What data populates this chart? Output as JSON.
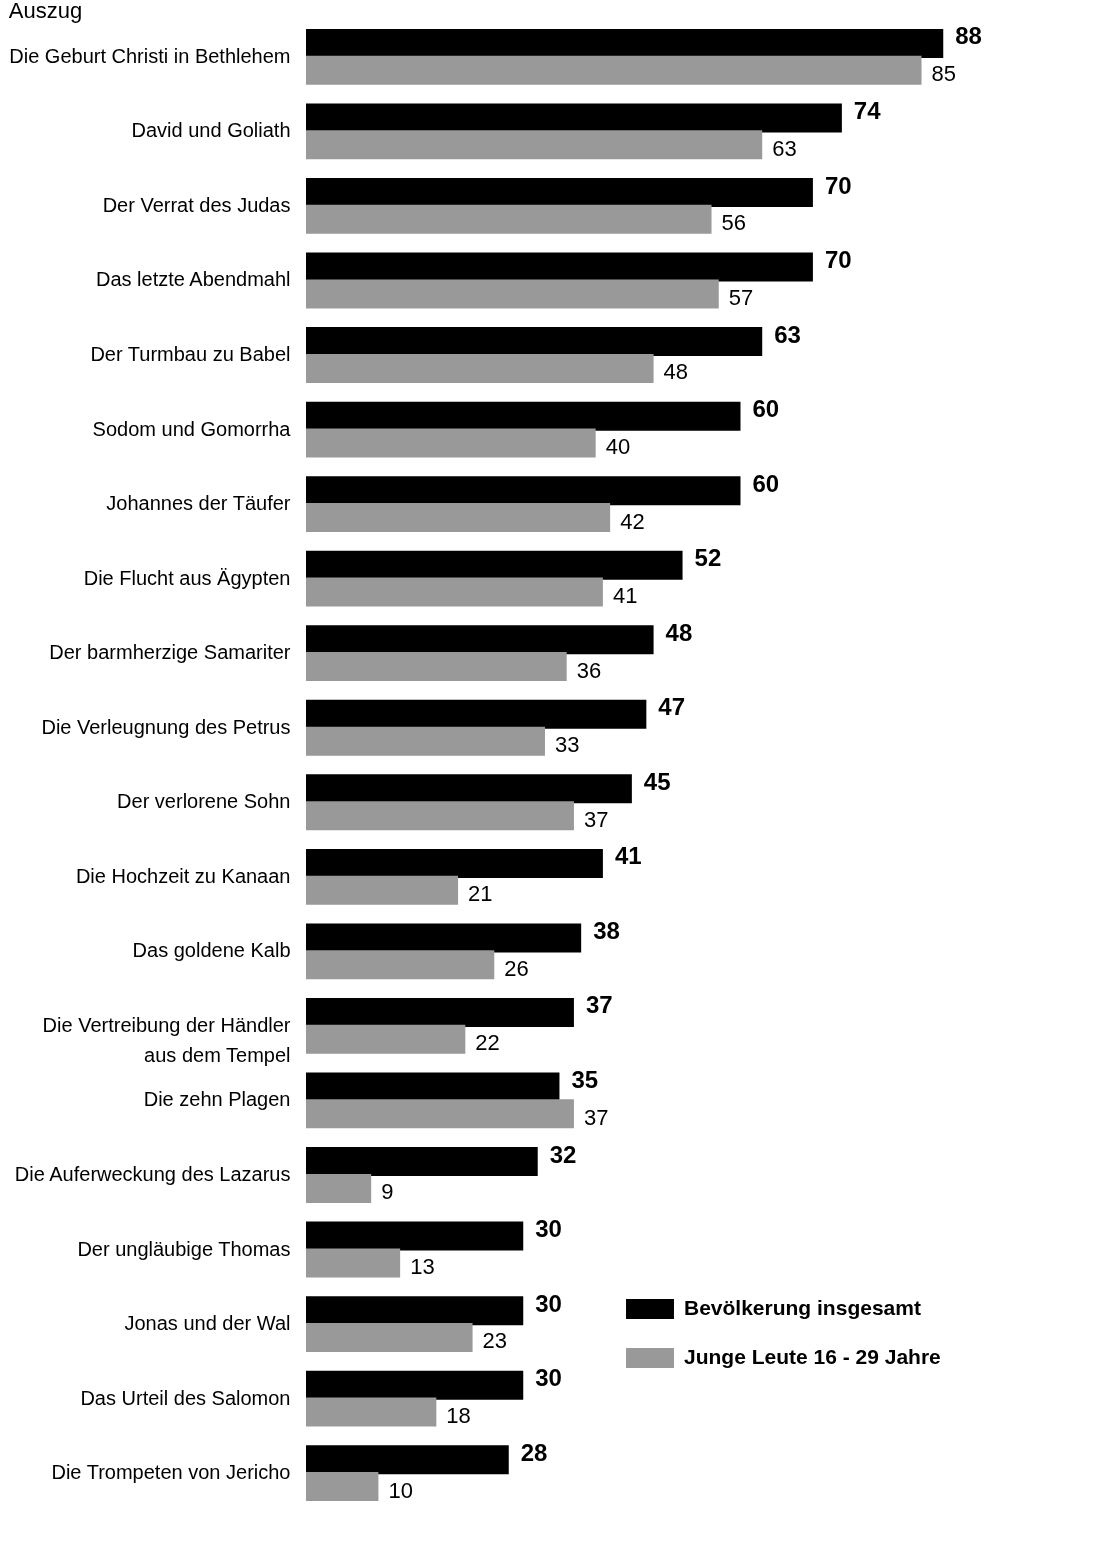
{
  "chart_data": {
    "type": "bar",
    "orientation": "horizontal",
    "title": "Auszug",
    "categories": [
      "Die Geburt Christi in Bethlehem",
      "David und Goliath",
      "Der Verrat des Judas",
      "Das letzte Abendmahl",
      "Der Turmbau zu Babel",
      "Sodom und Gomorrha",
      "Johannes der Täufer",
      "Die Flucht aus Ägypten",
      "Der barmherzige Samariter",
      "Die Verleugnung des Petrus",
      "Der verlorene Sohn",
      "Die Hochzeit zu Kanaan",
      "Das goldene Kalb",
      "Die Vertreibung der Händler\naus dem Tempel",
      "Die zehn Plagen",
      "Die Auferweckung des Lazarus",
      "Der ungläubige Thomas",
      "Jonas und der Wal",
      "Das Urteil des Salomon",
      "Die Trompeten von Jericho"
    ],
    "series": [
      {
        "name": "Bevölkerung insgesamt",
        "color": "#000000",
        "values": [
          88,
          74,
          70,
          70,
          63,
          60,
          60,
          52,
          48,
          47,
          45,
          41,
          38,
          37,
          35,
          32,
          30,
          30,
          30,
          28
        ]
      },
      {
        "name": "Junge Leute 16 - 29 Jahre",
        "color": "#999999",
        "values": [
          85,
          63,
          56,
          57,
          48,
          40,
          42,
          41,
          36,
          33,
          37,
          21,
          26,
          22,
          37,
          9,
          13,
          23,
          18,
          10
        ]
      }
    ],
    "data_labels": true,
    "legend": "bottom right",
    "grid": false
  }
}
